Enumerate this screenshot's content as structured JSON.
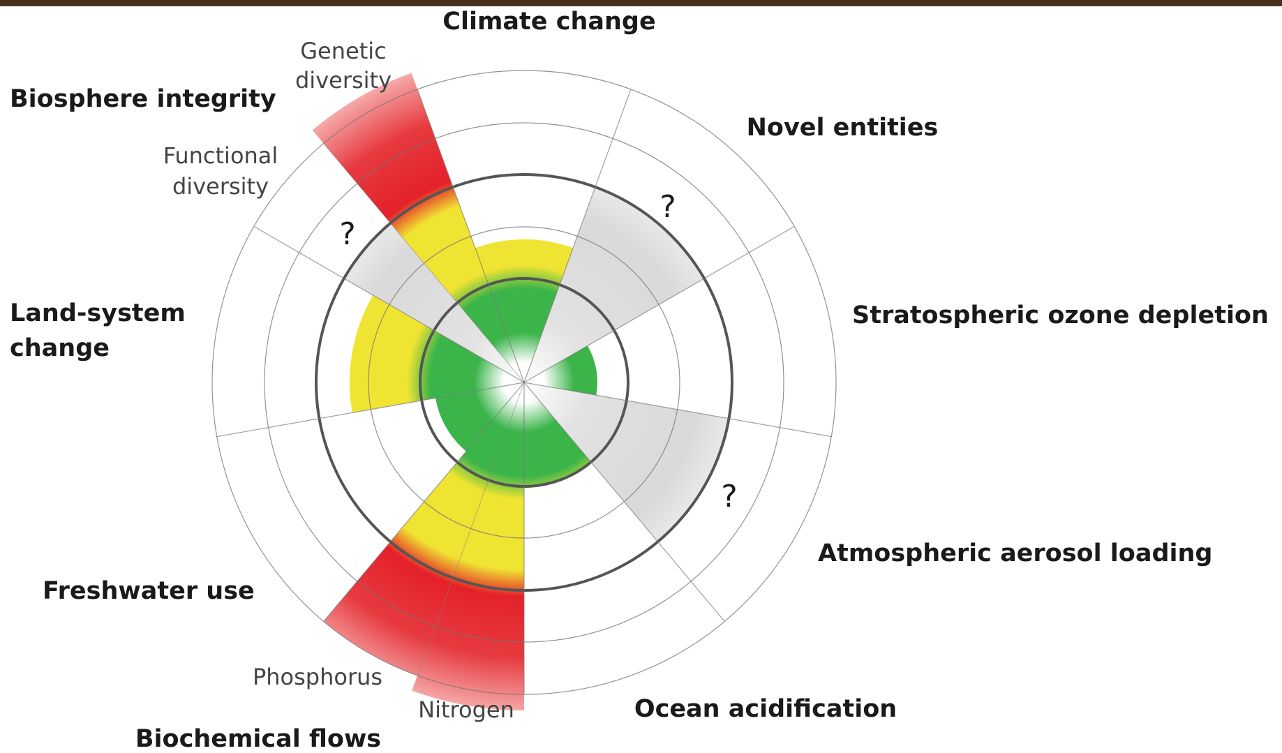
{
  "title": "Climate change",
  "boundaries": {
    "climate": "Climate change",
    "novel": "Novel entities",
    "ozone": "Stratospheric ozone depletion",
    "aerosol": "Atmospheric aerosol loading",
    "ocean": "Ocean acidification",
    "biochemical": "Biochemical flows",
    "nitrogen": "Nitrogen",
    "phosphorus": "Phosphorus",
    "freshwater": "Freshwater use",
    "land": [
      "Land-system",
      "change"
    ],
    "biosphere": "Biosphere integrity",
    "functional": [
      "Functional",
      "diversity"
    ],
    "genetic": [
      "Genetic",
      "diversity"
    ]
  },
  "unknown_marks": [
    "?",
    "?",
    "?"
  ]
}
